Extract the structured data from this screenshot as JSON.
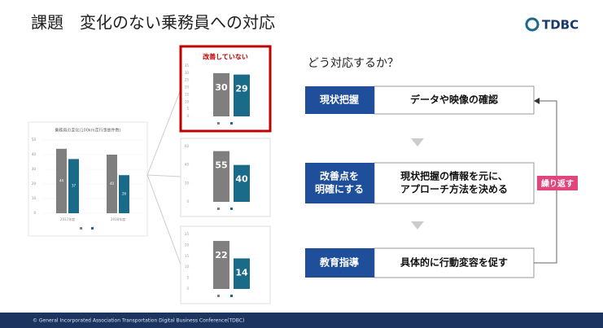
{
  "header": {
    "title": "課題　変化のない乗務員への対応",
    "logo": "TDBC"
  },
  "overview_chart": {
    "type": "bar",
    "title": "乗務員の変化(100km走行事故件数)",
    "categories": [
      "2017年度",
      "2018年度"
    ],
    "series": [
      {
        "color": "#7f7f7f",
        "values": [
          44,
          40
        ]
      },
      {
        "color": "#1a6a8a",
        "values": [
          37,
          26
        ]
      }
    ],
    "ylim": [
      0,
      50
    ],
    "yticks": [
      0,
      10,
      20,
      30,
      40,
      50
    ]
  },
  "chart_data": [
    {
      "type": "bar",
      "title": "改善していない",
      "values": [
        30,
        29
      ],
      "colors": [
        "#7f7f7f",
        "#1a6a8a"
      ],
      "ylim": [
        0,
        35
      ],
      "yticks": [
        0,
        5,
        10,
        15,
        20,
        25,
        30,
        35
      ],
      "highlight": "#c00000"
    },
    {
      "type": "bar",
      "values": [
        55,
        40
      ],
      "colors": [
        "#7f7f7f",
        "#1a6a8a"
      ],
      "ylim": [
        0,
        60
      ],
      "yticks": [
        0,
        20,
        40,
        60
      ]
    },
    {
      "type": "bar",
      "values": [
        22,
        14
      ],
      "colors": [
        "#7f7f7f",
        "#1a6a8a"
      ],
      "ylim": [
        0,
        25
      ],
      "yticks": [
        0,
        5,
        10,
        15,
        20,
        25
      ]
    }
  ],
  "flow": {
    "question": "どう対応するか？",
    "steps": [
      {
        "label": [
          "現状把握"
        ],
        "text": [
          "データや映像の確認"
        ]
      },
      {
        "label": [
          "改善点を",
          "明確にする"
        ],
        "text": [
          "現状把握の情報を元に、",
          "アプローチ方法を決める"
        ]
      },
      {
        "label": [
          "教育指導"
        ],
        "text": [
          "具体的に行動変容を促す"
        ]
      }
    ],
    "loop": "繰り返す"
  },
  "footer": "© General Incorporated Association Transportation Digital Business Conference(TDBC)"
}
